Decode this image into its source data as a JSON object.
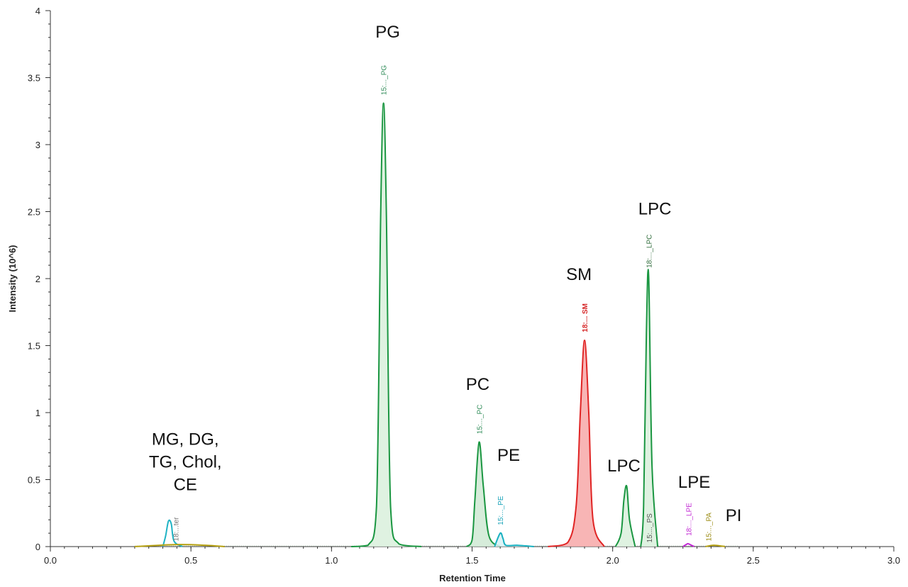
{
  "chart_data": {
    "type": "line",
    "title": "",
    "xlabel": "Retention Time",
    "ylabel": "Intensity (10^6)",
    "xlim": [
      0.0,
      3.0
    ],
    "ylim": [
      0,
      4
    ],
    "x_ticks": [
      "0.0",
      "0.5",
      "1.0",
      "1.5",
      "2.0",
      "2.5",
      "3.0"
    ],
    "y_ticks": [
      "0",
      "0.5",
      "1",
      "1.5",
      "2",
      "2.5",
      "3",
      "3.5",
      "4"
    ],
    "grid": false,
    "legend": "none",
    "series": [
      {
        "color": "#1a9641",
        "fill": "#d9f0dc",
        "x": [
          1.07,
          1.13,
          1.16,
          1.175,
          1.185,
          1.195,
          1.21,
          1.24,
          1.32
        ],
        "y": [
          0.0,
          0.01,
          0.3,
          2.5,
          3.31,
          2.5,
          0.3,
          0.02,
          0.0
        ]
      },
      {
        "color": "#1a9641",
        "fill": "#cfe9d3",
        "x": [
          1.48,
          1.5,
          1.51,
          1.525,
          1.54,
          1.56,
          1.6
        ],
        "y": [
          0.0,
          0.05,
          0.35,
          0.78,
          0.45,
          0.08,
          0.0
        ]
      },
      {
        "color": "#17b0c0",
        "fill": "#d8f1f4",
        "x": [
          1.58,
          1.6,
          1.61,
          1.62,
          1.66,
          1.72
        ],
        "y": [
          0.0,
          0.1,
          0.06,
          0.01,
          0.01,
          0.0
        ]
      },
      {
        "color": "#e02424",
        "fill": "#f7a8a8",
        "x": [
          1.77,
          1.84,
          1.87,
          1.885,
          1.9,
          1.915,
          1.93,
          1.97
        ],
        "y": [
          0.0,
          0.03,
          0.3,
          1.0,
          1.54,
          1.0,
          0.2,
          0.0
        ]
      },
      {
        "color": "#1a9641",
        "fill": "#d9f0dc",
        "x": [
          2.01,
          2.03,
          2.04,
          2.05,
          2.06,
          2.08
        ],
        "y": [
          0.0,
          0.1,
          0.35,
          0.45,
          0.2,
          0.0
        ]
      },
      {
        "color": "#1a9641",
        "fill": "#d9f0dc",
        "x": [
          2.1,
          2.11,
          2.12,
          2.128,
          2.14,
          2.16
        ],
        "y": [
          0.0,
          0.3,
          1.6,
          2.02,
          0.6,
          0.0
        ]
      },
      {
        "color": "#1fb3c4",
        "fill": "none",
        "x": [
          0.4,
          0.41,
          0.42,
          0.43,
          0.44,
          0.47
        ],
        "y": [
          0.0,
          0.08,
          0.19,
          0.17,
          0.04,
          0.0
        ]
      },
      {
        "color": "#c026d3",
        "fill": "none",
        "x": [
          2.25,
          2.265,
          2.27,
          2.28,
          2.29
        ],
        "y": [
          0.0,
          0.02,
          0.02,
          0.01,
          0.0
        ]
      },
      {
        "color": "#b5a011",
        "fill": "none",
        "x": [
          0.3,
          0.45,
          0.55,
          0.62
        ],
        "y": [
          0.0,
          0.015,
          0.01,
          0.0
        ]
      },
      {
        "color": "#b5a011",
        "fill": "none",
        "x": [
          2.33,
          2.36,
          2.4
        ],
        "y": [
          0.0,
          0.01,
          0.0
        ]
      }
    ],
    "peak_labels": [
      {
        "text": "15:..._PG",
        "x": 1.185,
        "y": 3.37,
        "color": "#2e8b57",
        "bold": false
      },
      {
        "text": "15:..._PC",
        "x": 1.525,
        "y": 0.84,
        "color": "#2e8b57",
        "bold": false
      },
      {
        "text": "15:..._PE",
        "x": 1.6,
        "y": 0.16,
        "color": "#17a2b8",
        "bold": false
      },
      {
        "text": "18:... SM",
        "x": 1.9,
        "y": 1.6,
        "color": "#d62728",
        "bold": true
      },
      {
        "text": "18:..._LPC",
        "x": 2.128,
        "y": 2.08,
        "color": "#2e6b3a",
        "bold": false
      },
      {
        "text": "15:..._PS",
        "x": 2.13,
        "y": 0.03,
        "color": "#555555",
        "bold": false
      },
      {
        "text": "18:..._LPE",
        "x": 2.27,
        "y": 0.08,
        "color": "#c026d3",
        "bold": false
      },
      {
        "text": "15:..._PA",
        "x": 2.34,
        "y": 0.04,
        "color": "#9a8a10",
        "bold": false
      },
      {
        "text": "18:...ter",
        "x": 0.445,
        "y": 0.04,
        "color": "#777777",
        "bold": false
      }
    ],
    "annotations": [
      {
        "lines": [
          "PG"
        ],
        "x": 1.2,
        "y": 3.8
      },
      {
        "lines": [
          "PC"
        ],
        "x": 1.52,
        "y": 1.17
      },
      {
        "lines": [
          "PE"
        ],
        "x": 1.63,
        "y": 0.64
      },
      {
        "lines": [
          "SM"
        ],
        "x": 1.88,
        "y": 1.99
      },
      {
        "lines": [
          "LPC"
        ],
        "x": 2.15,
        "y": 2.48
      },
      {
        "lines": [
          "LPC"
        ],
        "x": 2.04,
        "y": 0.56
      },
      {
        "lines": [
          "LPE"
        ],
        "x": 2.29,
        "y": 0.44
      },
      {
        "lines": [
          "PI"
        ],
        "x": 2.43,
        "y": 0.19
      },
      {
        "lines": [
          "MG, DG,",
          "TG, Chol,",
          "CE"
        ],
        "x": 0.48,
        "y": 0.76
      }
    ]
  }
}
